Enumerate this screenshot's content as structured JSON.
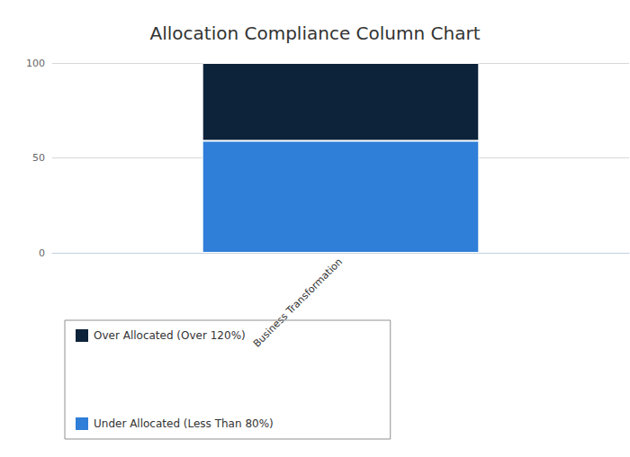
{
  "chart_data": {
    "type": "bar",
    "title": "Allocation Compliance Column Chart",
    "categories": [
      "Business Transformation"
    ],
    "series": [
      {
        "name": "Over Allocated (Over 120%)",
        "color": "#0d233a",
        "values": [
          41
        ]
      },
      {
        "name": "Under Allocated (Less Than 80%)",
        "color": "#2f7ed8",
        "values": [
          59
        ]
      }
    ],
    "stacked": true,
    "ylim": [
      0,
      100
    ],
    "yticks": [
      0,
      50,
      100
    ],
    "grid": true,
    "legend": "bottom"
  }
}
